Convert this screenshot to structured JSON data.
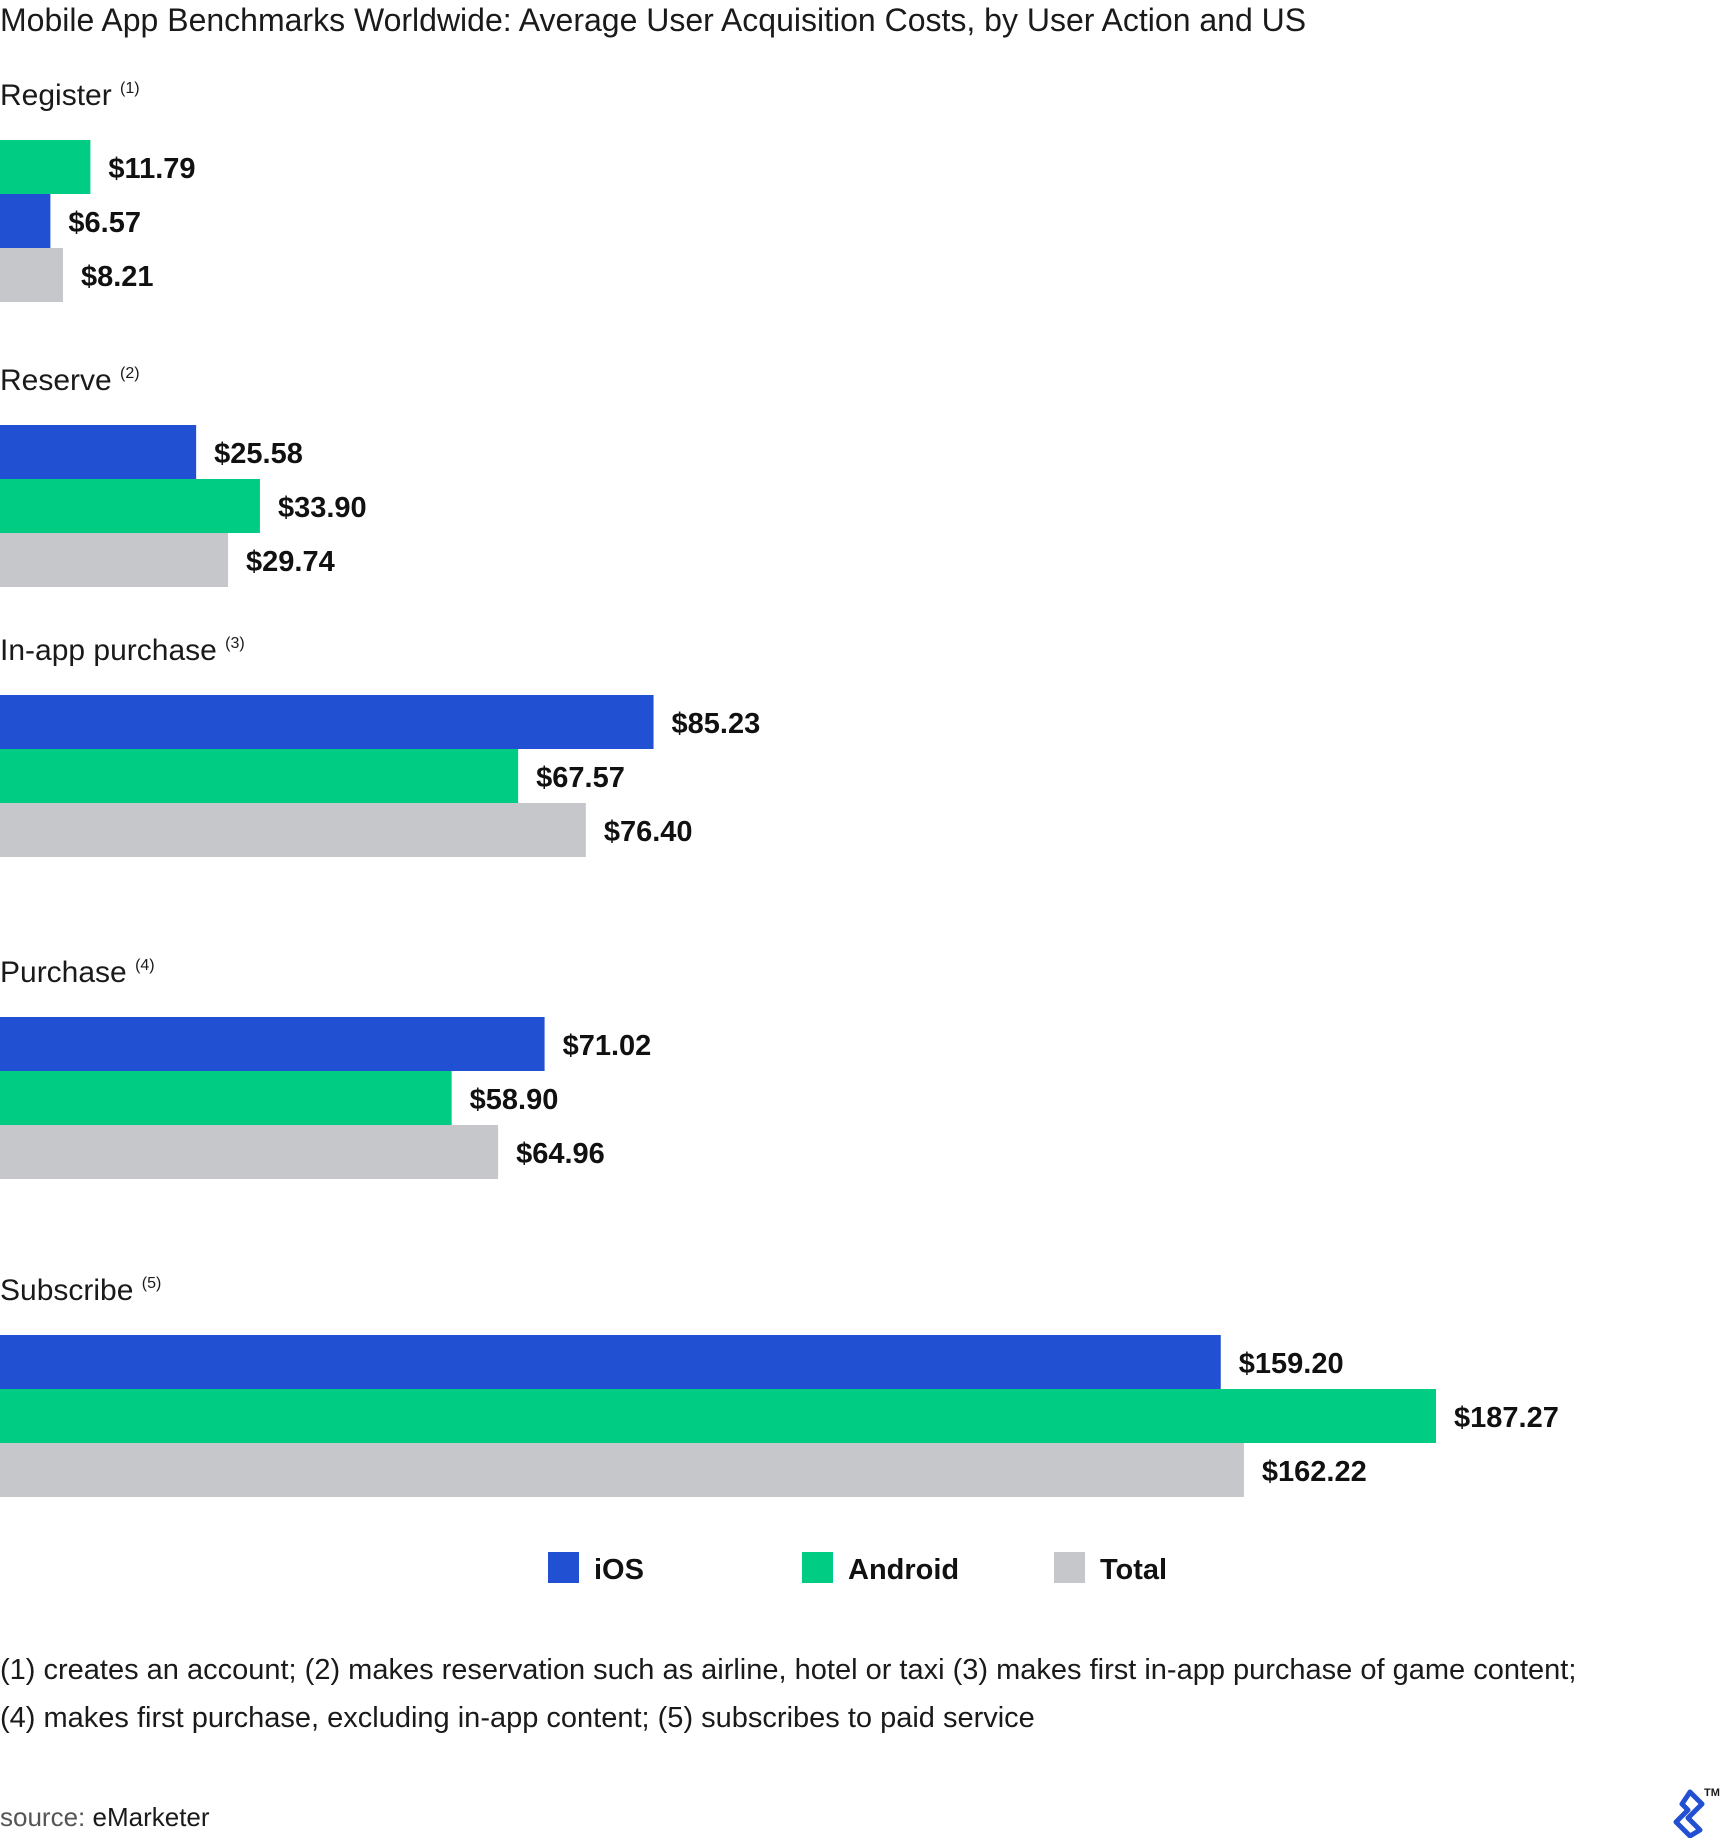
{
  "chart_data": {
    "type": "bar",
    "orientation": "horizontal",
    "title": "Mobile App Benchmarks Worldwide: Average User Acquisition Costs, by User Action and US",
    "categories": [
      {
        "label": "Register",
        "note": "(1)"
      },
      {
        "label": "Reserve",
        "note": "(2)"
      },
      {
        "label": "In-app purchase",
        "note": "(3)"
      },
      {
        "label": "Purchase",
        "note": "(4)"
      },
      {
        "label": "Subscribe",
        "note": "(5)"
      }
    ],
    "groups": [
      {
        "bars": [
          {
            "series": "Android",
            "value": 11.79,
            "label": "$11.79"
          },
          {
            "series": "iOS",
            "value": 6.57,
            "label": "$6.57"
          },
          {
            "series": "Total",
            "value": 8.21,
            "label": "$8.21"
          }
        ]
      },
      {
        "bars": [
          {
            "series": "iOS",
            "value": 25.58,
            "label": "$25.58"
          },
          {
            "series": "Android",
            "value": 33.9,
            "label": "$33.90"
          },
          {
            "series": "Total",
            "value": 29.74,
            "label": "$29.74"
          }
        ]
      },
      {
        "bars": [
          {
            "series": "iOS",
            "value": 85.23,
            "label": "$85.23"
          },
          {
            "series": "Android",
            "value": 67.57,
            "label": "$67.57"
          },
          {
            "series": "Total",
            "value": 76.4,
            "label": "$76.40"
          }
        ]
      },
      {
        "bars": [
          {
            "series": "iOS",
            "value": 71.02,
            "label": "$71.02"
          },
          {
            "series": "Android",
            "value": 58.9,
            "label": "$58.90"
          },
          {
            "series": "Total",
            "value": 64.96,
            "label": "$64.96"
          }
        ]
      },
      {
        "bars": [
          {
            "series": "iOS",
            "value": 159.2,
            "label": "$159.20"
          },
          {
            "series": "Android",
            "value": 187.27,
            "label": "$187.27"
          },
          {
            "series": "Total",
            "value": 162.22,
            "label": "$162.22"
          }
        ]
      }
    ],
    "series": [
      {
        "name": "iOS",
        "color": "#2250d2"
      },
      {
        "name": "Android",
        "color": "#00cc84"
      },
      {
        "name": "Total",
        "color": "#c6c7cb"
      }
    ],
    "xlabel": "",
    "ylabel": "",
    "grid": false,
    "legend_position": "bottom-center"
  },
  "footnotes": [
    "(1) creates an account; (2) makes reservation such as airline, hotel or taxi (3) makes first in-app purchase of game content;",
    "(4) makes first purchase, excluding in-app content; (5) subscribes to paid service"
  ],
  "source": {
    "label": "source:",
    "value": "eMarketer"
  },
  "logo": {
    "icon": "toptal-logo-icon",
    "mark": "TM",
    "color": "#2250d2"
  }
}
